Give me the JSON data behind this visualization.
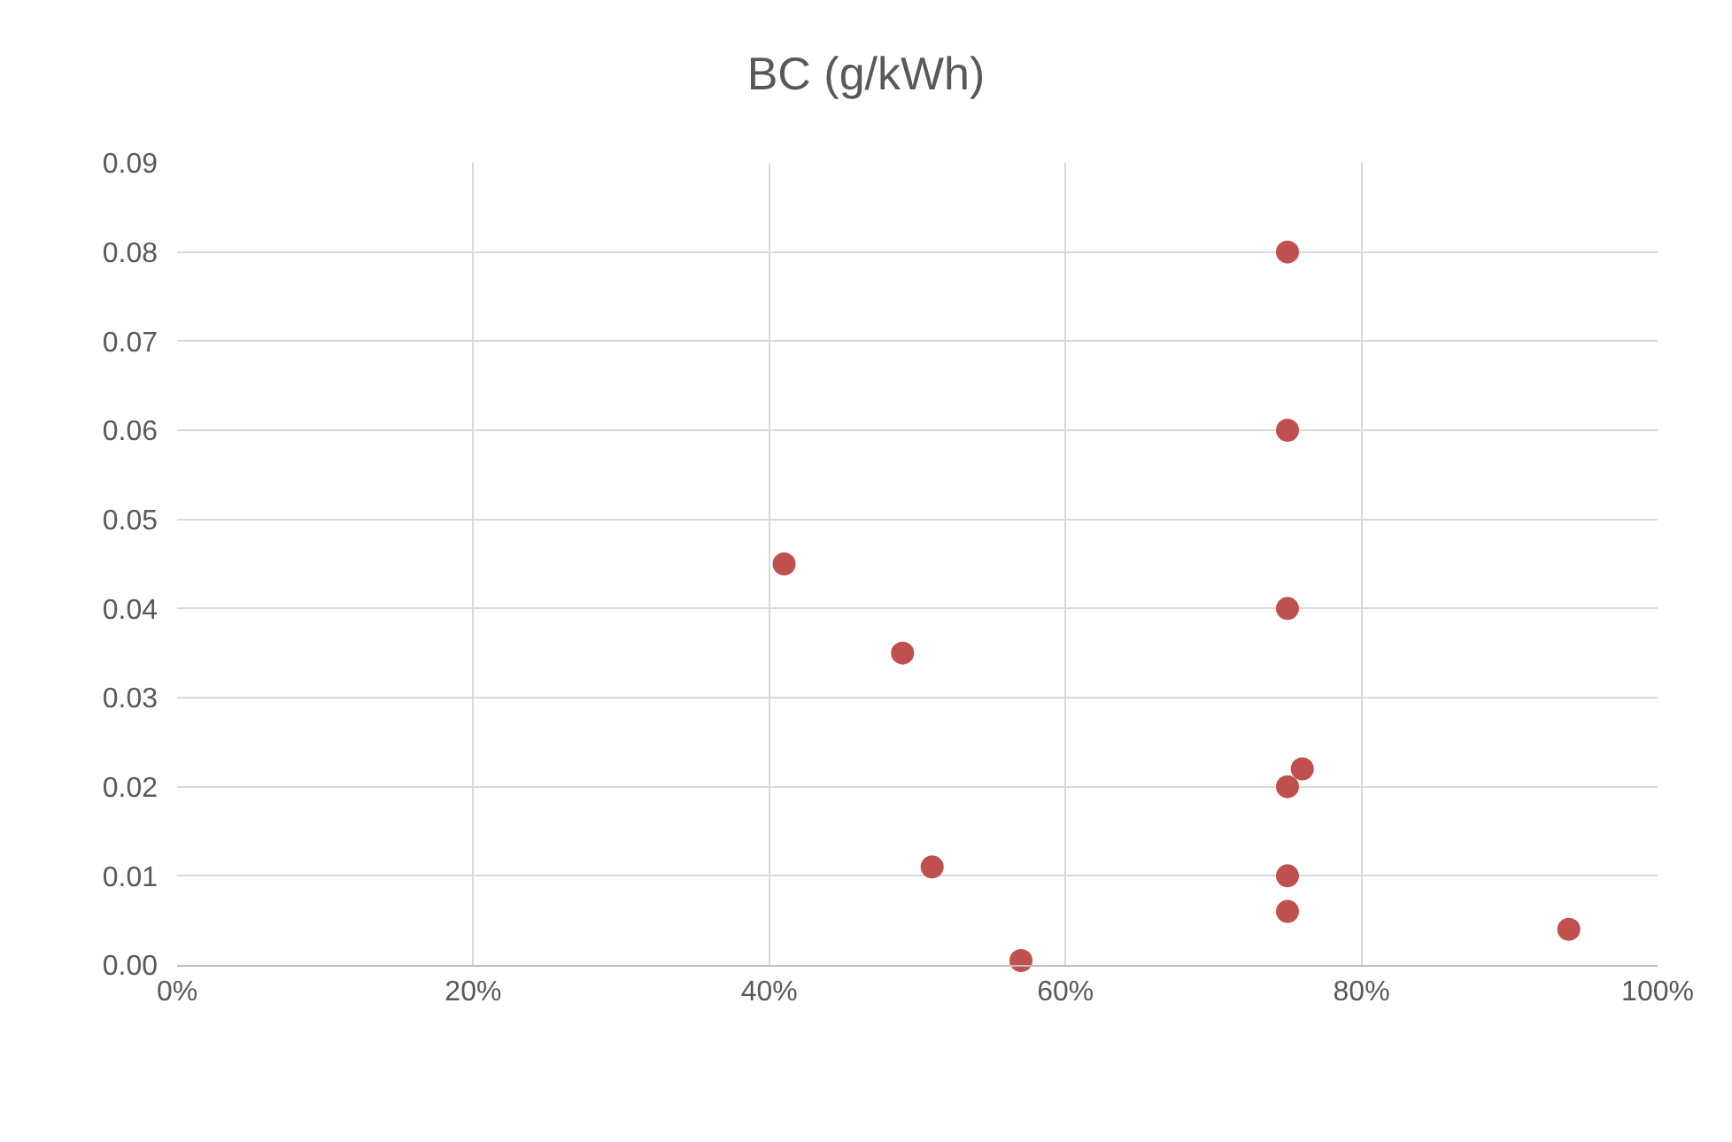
{
  "chart_data": {
    "type": "scatter",
    "title": "BC (g/kWh)",
    "x": [
      75,
      75,
      41,
      49,
      75,
      76,
      75,
      51,
      75,
      75,
      94,
      57
    ],
    "values": [
      0.08,
      0.06,
      0.045,
      0.035,
      0.04,
      0.022,
      0.02,
      0.011,
      0.01,
      0.006,
      0.004,
      0.0005
    ],
    "color": "#c0504d",
    "marker": "circle",
    "grid": true,
    "xlim": [
      0,
      100
    ],
    "xticks": [
      {
        "value": 0,
        "label": "0%"
      },
      {
        "value": 20,
        "label": "20%"
      },
      {
        "value": 40,
        "label": "40%"
      },
      {
        "value": 60,
        "label": "60%"
      },
      {
        "value": 80,
        "label": "80%"
      },
      {
        "value": 100,
        "label": "100%"
      }
    ],
    "ylim": [
      0,
      0.09
    ],
    "yticks": [
      {
        "value": 0,
        "label": "0.00"
      },
      {
        "value": 0.01,
        "label": "0.01"
      },
      {
        "value": 0.02,
        "label": "0.02"
      },
      {
        "value": 0.03,
        "label": "0.03"
      },
      {
        "value": 0.04,
        "label": "0.04"
      },
      {
        "value": 0.05,
        "label": "0.05"
      },
      {
        "value": 0.06,
        "label": "0.06"
      },
      {
        "value": 0.07,
        "label": "0.07"
      },
      {
        "value": 0.08,
        "label": "0.08"
      },
      {
        "value": 0.09,
        "label": "0.09"
      }
    ]
  }
}
